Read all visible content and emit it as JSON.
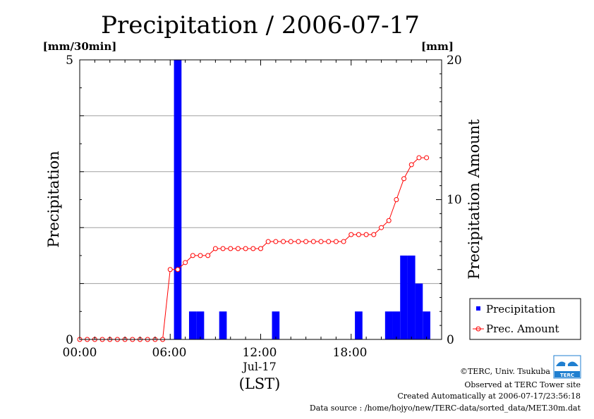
{
  "chart_data": {
    "type": "bar",
    "title": "Precipitation / 2006-07-17",
    "ylabel": "Precipitation",
    "ylabel_right": "Precipitation Amount",
    "y_unit_left": "[mm/30min]",
    "y_unit_right": "[mm]",
    "ylim": [
      0,
      5
    ],
    "ylim_right": [
      0,
      20
    ],
    "yticks_left": [
      "0",
      "5"
    ],
    "yticks_right": [
      "0",
      "10",
      "20"
    ],
    "xticks": [
      "00:00",
      "06:00",
      "12:00",
      "18:00"
    ],
    "xlabel_date": "Jul-17",
    "xlabel": "(LST)",
    "grid": true,
    "legend_position": "right",
    "colors": {
      "bar": "#0000ff",
      "line": "#ff0000"
    },
    "x_hours": [
      0,
      0.5,
      1,
      1.5,
      2,
      2.5,
      3,
      3.5,
      4,
      4.5,
      5,
      5.5,
      6,
      6.5,
      7,
      7.5,
      8,
      8.5,
      9,
      9.5,
      10,
      10.5,
      11,
      11.5,
      12,
      12.5,
      13,
      13.5,
      14,
      14.5,
      15,
      15.5,
      16,
      16.5,
      17,
      17.5,
      18,
      18.5,
      19,
      19.5,
      20,
      20.5,
      21,
      21.5,
      22,
      22.5,
      23
    ],
    "series": [
      {
        "name": "Precipitation",
        "kind": "bar",
        "values": [
          0,
          0,
          0,
          0,
          0,
          0,
          0,
          0,
          0,
          0,
          0,
          0,
          5,
          0,
          0.5,
          0.5,
          0,
          0,
          0.5,
          0,
          0,
          0,
          0,
          0,
          0,
          0.5,
          0,
          0,
          0,
          0,
          0,
          0,
          0,
          0,
          0,
          0,
          0.5,
          0,
          0,
          0,
          0.5,
          0.5,
          1.5,
          1.5,
          1,
          0.5,
          0
        ]
      },
      {
        "name": "Prec. Amount",
        "kind": "line",
        "values": [
          0,
          0,
          0,
          0,
          0,
          0,
          0,
          0,
          0,
          0,
          0,
          0,
          5,
          5,
          5.5,
          6,
          6,
          6,
          6.5,
          6.5,
          6.5,
          6.5,
          6.5,
          6.5,
          6.5,
          7,
          7,
          7,
          7,
          7,
          7,
          7,
          7,
          7,
          7,
          7,
          7.5,
          7.5,
          7.5,
          7.5,
          8,
          8.5,
          10,
          11.5,
          12.5,
          13,
          13
        ]
      }
    ]
  },
  "credits": {
    "copyright": "©TERC, Univ. Tsukuba",
    "observed": "Observed at TERC Tower site",
    "created": "Created Automatically at 2006-07-17/23:56:18",
    "source": "Data source : /home/hojyo/new/TERC-data/sorted_data/MET.30m.dat",
    "logo_text": "TERC"
  }
}
